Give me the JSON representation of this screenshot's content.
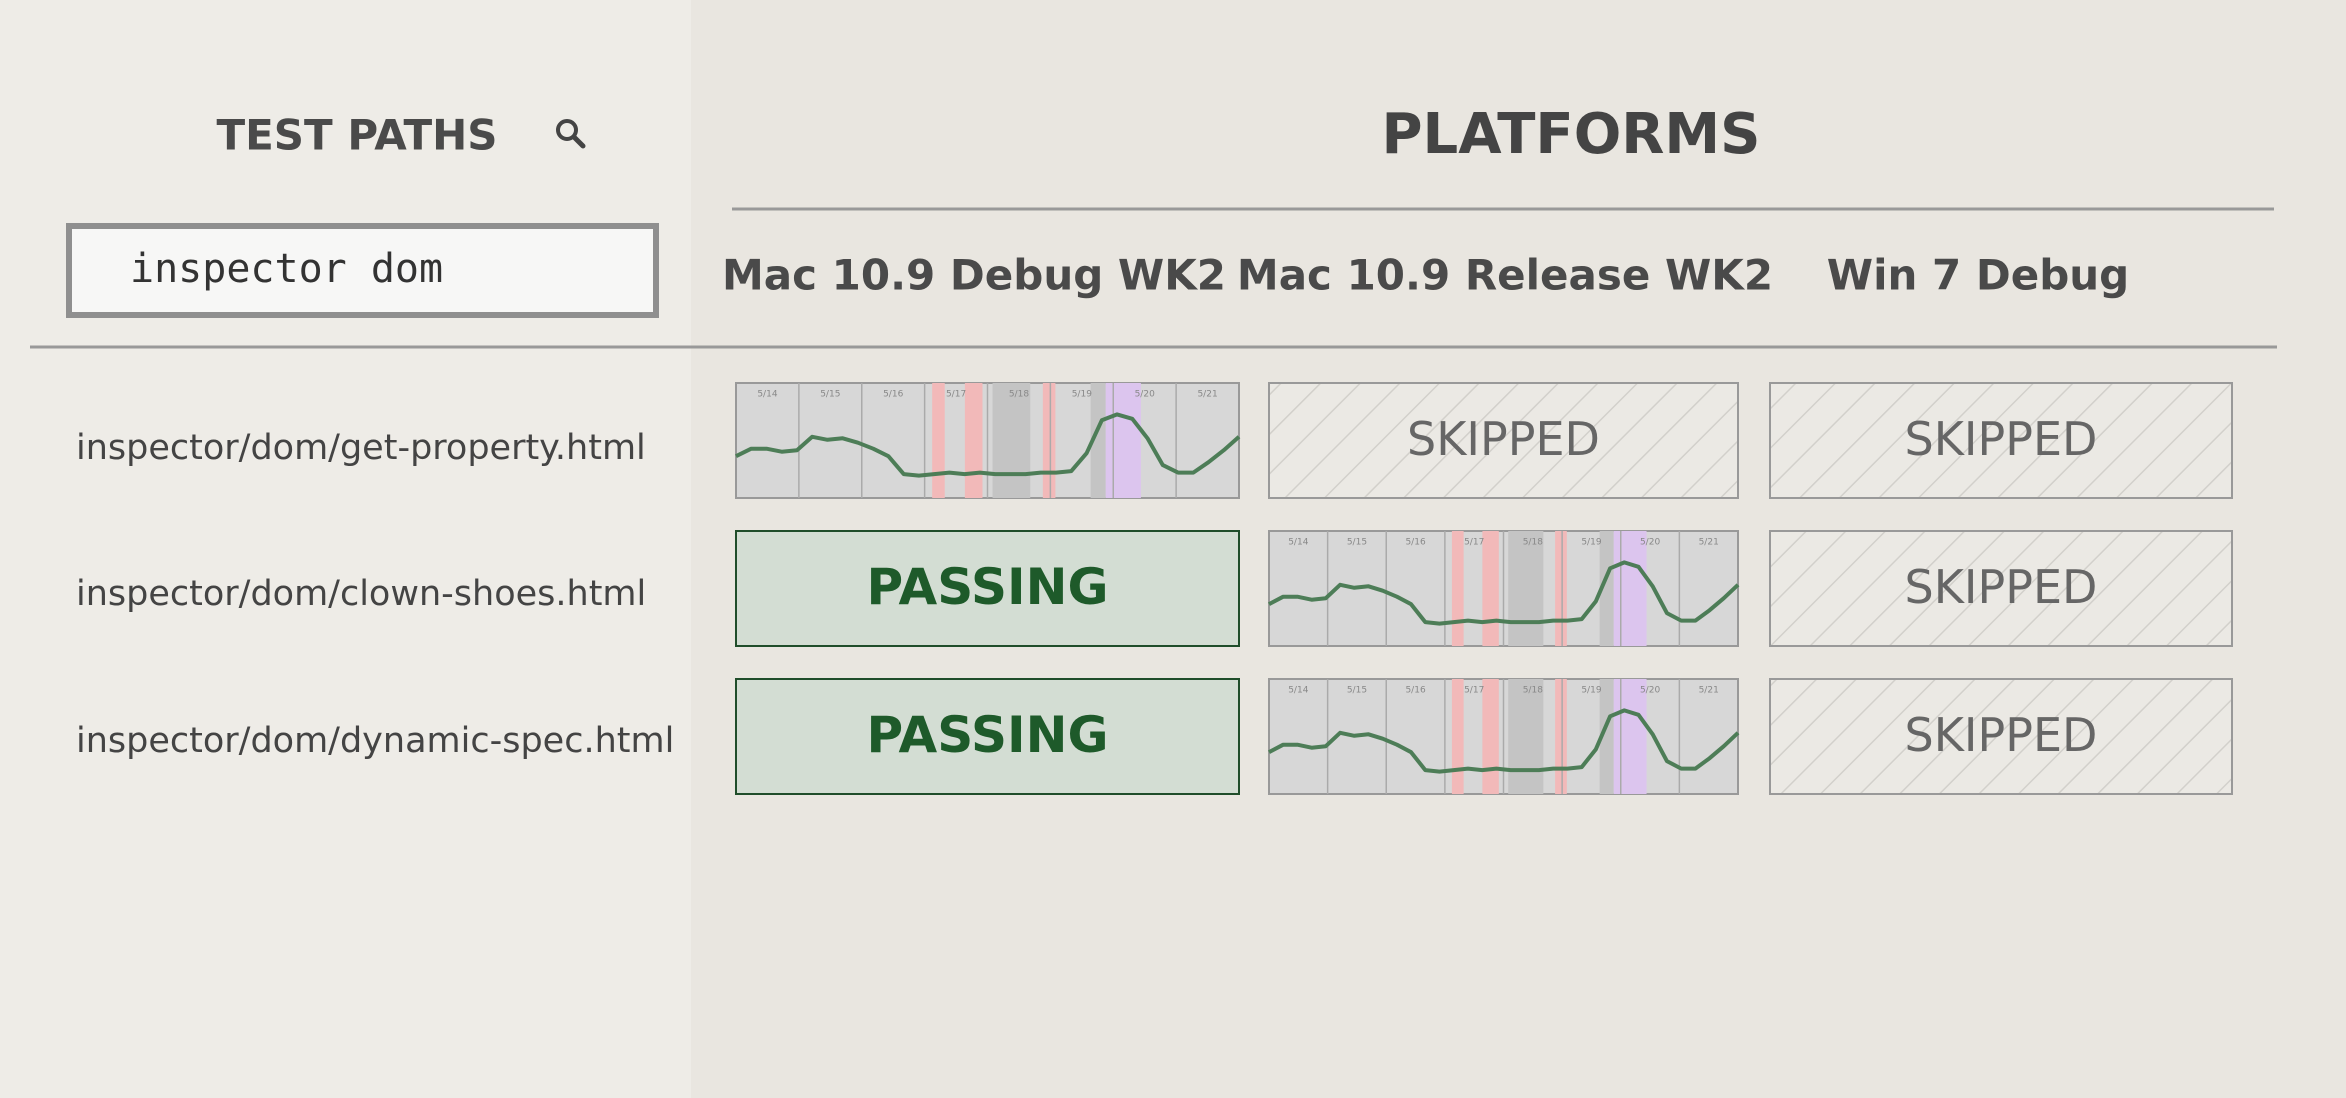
{
  "header": {
    "test_paths": "TEST PATHS",
    "platforms": "PLATFORMS"
  },
  "search": {
    "value": "inspector dom"
  },
  "platforms": [
    "Mac 10.9 Debug WK2",
    "Mac 10.9 Release WK2",
    "Win 7 Debug"
  ],
  "rows": [
    {
      "path": "inspector/dom/get-property.html",
      "cells": [
        null,
        "SKIPPED",
        "SKIPPED"
      ]
    },
    {
      "path": "inspector/dom/clown-shoes.html",
      "cells": [
        "PASSING",
        null,
        "SKIPPED"
      ]
    },
    {
      "path": "inspector/dom/dynamic-spec.html",
      "cells": [
        "PASSING",
        null,
        "SKIPPED"
      ]
    }
  ],
  "timeline": {
    "type": "line",
    "color": "#4d7d57",
    "x_labels": [
      "5/14",
      "5/15",
      "5/16",
      "5/17",
      "5/18",
      "5/19",
      "5/20",
      "5/21"
    ],
    "values": [
      28,
      33,
      33,
      31,
      32,
      41,
      39,
      40,
      37,
      33,
      28,
      16,
      15,
      16,
      17,
      16,
      17,
      16,
      16,
      16,
      17,
      17,
      18,
      30,
      52,
      56,
      53,
      40,
      22,
      17,
      17,
      24,
      32,
      41
    ],
    "ylim": [
      0,
      77
    ]
  }
}
